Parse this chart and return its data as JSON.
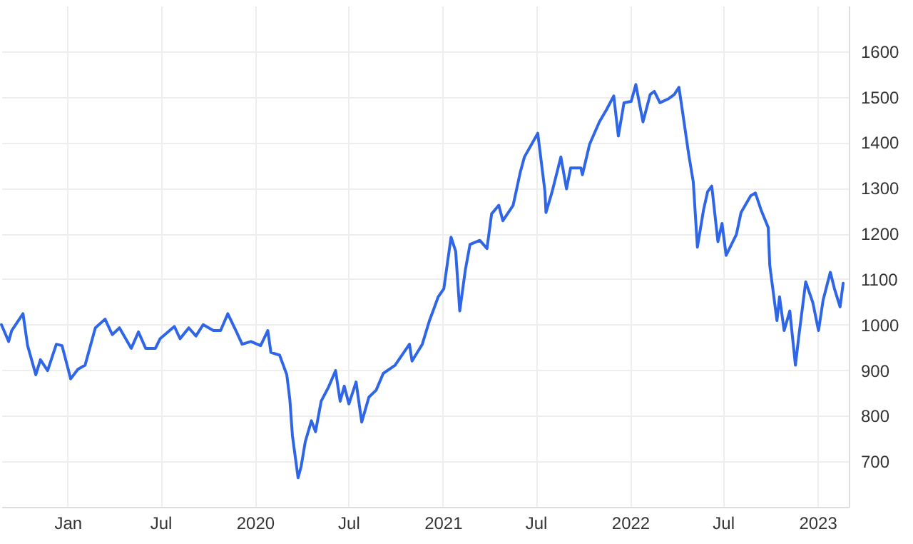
{
  "chart_data": {
    "type": "line",
    "x": [
      "2018-08-25",
      "2018-09-08",
      "2018-09-14",
      "2018-10-06",
      "2018-10-15",
      "2018-10-31",
      "2018-11-09",
      "2018-11-23",
      "2018-12-10",
      "2018-12-21",
      "2019-01-07",
      "2019-01-21",
      "2019-02-04",
      "2019-02-24",
      "2019-03-15",
      "2019-03-29",
      "2019-04-12",
      "2019-05-05",
      "2019-05-19",
      "2019-06-02",
      "2019-06-21",
      "2019-06-30",
      "2019-07-28",
      "2019-08-08",
      "2019-08-25",
      "2019-09-08",
      "2019-09-22",
      "2019-10-12",
      "2019-10-26",
      "2019-11-09",
      "2019-11-26",
      "2019-12-07",
      "2019-12-24",
      "2020-01-12",
      "2020-01-26",
      "2020-02-01",
      "2020-02-18",
      "2020-03-03",
      "2020-03-09",
      "2020-03-14",
      "2020-03-25",
      "2020-03-31",
      "2020-04-08",
      "2020-04-20",
      "2020-04-28",
      "2020-05-09",
      "2020-05-23",
      "2020-06-06",
      "2020-06-15",
      "2020-06-23",
      "2020-07-02",
      "2020-07-16",
      "2020-07-27",
      "2020-08-10",
      "2020-08-24",
      "2020-09-07",
      "2020-09-30",
      "2020-10-28",
      "2020-11-02",
      "2020-11-22",
      "2020-12-06",
      "2020-12-14",
      "2020-12-23",
      "2021-01-03",
      "2021-01-17",
      "2021-01-26",
      "2021-02-03",
      "2021-02-14",
      "2021-02-23",
      "2021-03-14",
      "2021-03-28",
      "2021-04-06",
      "2021-04-20",
      "2021-04-28",
      "2021-05-18",
      "2021-06-01",
      "2021-06-09",
      "2021-07-05",
      "2021-07-10",
      "2021-07-19",
      "2021-07-21",
      "2021-08-02",
      "2021-08-19",
      "2021-08-30",
      "2021-09-07",
      "2021-09-27",
      "2021-09-30",
      "2021-10-14",
      "2021-11-02",
      "2021-11-16",
      "2021-11-30",
      "2021-12-09",
      "2021-12-20",
      "2022-01-03",
      "2022-01-12",
      "2022-01-26",
      "2022-02-09",
      "2022-02-17",
      "2022-02-28",
      "2022-03-17",
      "2022-03-28",
      "2022-04-06",
      "2022-04-14",
      "2022-04-25",
      "2022-05-04",
      "2022-05-12",
      "2022-05-24",
      "2022-06-01",
      "2022-06-09",
      "2022-06-21",
      "2022-06-29",
      "2022-07-07",
      "2022-07-27",
      "2022-08-05",
      "2022-08-24",
      "2022-09-02",
      "2022-09-13",
      "2022-09-27",
      "2022-09-30",
      "2022-10-14",
      "2022-10-19",
      "2022-10-28",
      "2022-11-08",
      "2022-11-19",
      "2022-11-25",
      "2022-12-09",
      "2022-12-23",
      "2023-01-03",
      "2023-01-12",
      "2023-01-26",
      "2023-02-03",
      "2023-02-14",
      "2023-02-20"
    ],
    "series": [
      {
        "color": "#2f66e8",
        "values": [
          1000,
          963,
          987,
          1024,
          954,
          890,
          923,
          899,
          957,
          954,
          881,
          902,
          911,
          993,
          1012,
          978,
          993,
          948,
          984,
          948,
          948,
          969,
          996,
          969,
          993,
          975,
          1000,
          987,
          987,
          1024,
          984,
          957,
          963,
          954,
          987,
          939,
          933,
          890,
          835,
          756,
          664,
          689,
          743,
          789,
          765,
          832,
          862,
          899,
          832,
          865,
          826,
          874,
          786,
          841,
          856,
          893,
          911,
          957,
          920,
          957,
          1009,
          1033,
          1061,
          1079,
          1192,
          1161,
          1030,
          1121,
          1176,
          1185,
          1167,
          1243,
          1262,
          1228,
          1262,
          1335,
          1368,
          1420,
          1374,
          1292,
          1246,
          1292,
          1368,
          1298,
          1344,
          1344,
          1329,
          1396,
          1445,
          1472,
          1502,
          1414,
          1487,
          1490,
          1527,
          1445,
          1505,
          1512,
          1487,
          1496,
          1505,
          1521,
          1460,
          1374,
          1313,
          1170,
          1252,
          1292,
          1304,
          1182,
          1222,
          1152,
          1198,
          1246,
          1283,
          1289,
          1252,
          1213,
          1130,
          1009,
          1061,
          987,
          1030,
          911,
          969,
          1094,
          1048,
          987,
          1054,
          1115,
          1079,
          1039,
          1091
        ]
      }
    ],
    "xlim": [
      "2018-08-25",
      "2023-03-03"
    ],
    "xticks": [
      {
        "value": "2019-01-01",
        "label": "Jan"
      },
      {
        "value": "2019-07-01",
        "label": "Jul"
      },
      {
        "value": "2020-01-01",
        "label": "2020"
      },
      {
        "value": "2020-07-01",
        "label": "Jul"
      },
      {
        "value": "2021-01-01",
        "label": "2021"
      },
      {
        "value": "2021-07-01",
        "label": "Jul"
      },
      {
        "value": "2022-01-01",
        "label": "2022"
      },
      {
        "value": "2022-07-01",
        "label": "Jul"
      },
      {
        "value": "2023-01-01",
        "label": "2023"
      }
    ],
    "ylim": [
      600,
      1700
    ],
    "yticks": [
      700,
      800,
      900,
      1000,
      1100,
      1200,
      1300,
      1400,
      1500,
      1600
    ],
    "grid": true,
    "line_style": "solid"
  }
}
